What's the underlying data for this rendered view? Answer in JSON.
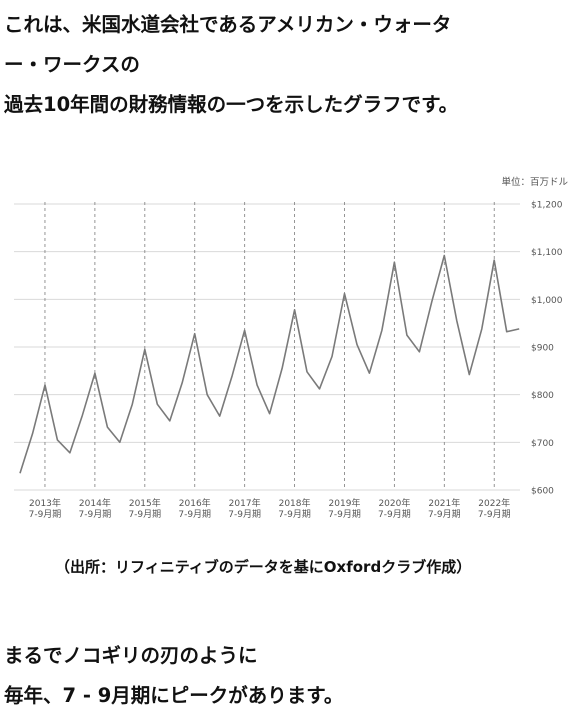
{
  "intro": {
    "line1": "これは、米国水道会社であるアメリカン・ウォータ",
    "line2": "ー・ワークスの",
    "line3": "過去10年間の財務情報の一つを示したグラフです。"
  },
  "chart_data": {
    "type": "line",
    "unit_label": "単位：百万ドル",
    "ylim": [
      600,
      1200
    ],
    "y_ticks": [
      600,
      700,
      800,
      900,
      1000,
      1100,
      1200
    ],
    "y_tick_labels": [
      "$600",
      "$700",
      "$800",
      "$900",
      "$1,000",
      "$1,100",
      "$1,200"
    ],
    "x_tick_labels": [
      {
        "year": "2013年",
        "q": "7-9月期"
      },
      {
        "year": "2014年",
        "q": "7-9月期"
      },
      {
        "year": "2015年",
        "q": "7-9月期"
      },
      {
        "year": "2016年",
        "q": "7-9月期"
      },
      {
        "year": "2017年",
        "q": "7-9月期"
      },
      {
        "year": "2018年",
        "q": "7-9月期"
      },
      {
        "year": "2019年",
        "q": "7-9月期"
      },
      {
        "year": "2020年",
        "q": "7-9月期"
      },
      {
        "year": "2021年",
        "q": "7-9月期"
      },
      {
        "year": "2022年",
        "q": "7-9月期"
      }
    ],
    "peak_index_offset": 2,
    "grid": "horizontal solid, vertical dashed at each 7-9月期",
    "line_color": "#7a7a7a",
    "series": [
      {
        "values": [
          635,
          718,
          820,
          705,
          678,
          757,
          845,
          732,
          700,
          780,
          895,
          780,
          745,
          825,
          928,
          800,
          755,
          840,
          935,
          820,
          760,
          855,
          978,
          848,
          812,
          880,
          1012,
          905,
          845,
          935,
          1078,
          925,
          890,
          995,
          1092,
          955,
          842,
          938,
          1082,
          932,
          938
        ]
      }
    ]
  },
  "source": "（出所：リフィニティブのデータを基にOxfordクラブ作成）",
  "outro": {
    "line1": "まるでノコギリの刃のように",
    "line2": "毎年、7 - 9月期にピークがあります。"
  }
}
